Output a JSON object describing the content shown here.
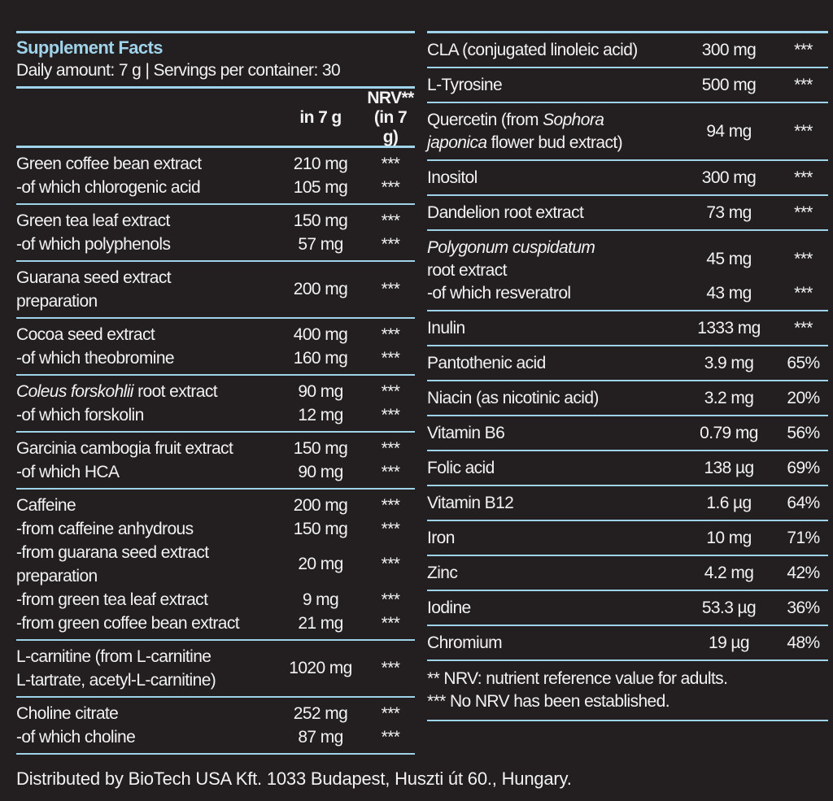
{
  "header": {
    "title": "Supplement Facts",
    "subtitle": "Daily amount: 7 g | Servings per container: 30"
  },
  "left": {
    "columns": {
      "amount": "in 7 g",
      "nrv": [
        "NRV**",
        "(in 7 g)"
      ]
    },
    "groups": [
      {
        "rows": [
          {
            "name": [
              "Green coffee bean extract"
            ],
            "amount": "210 mg",
            "nrv": "***"
          },
          {
            "name": [
              "-of which chlorogenic acid"
            ],
            "amount": "105 mg",
            "nrv": "***"
          }
        ]
      },
      {
        "rows": [
          {
            "name": [
              "Green tea leaf extract"
            ],
            "amount": "150 mg",
            "nrv": "***"
          },
          {
            "name": [
              "-of which polyphenols"
            ],
            "amount": "57 mg",
            "nrv": "***"
          }
        ]
      },
      {
        "rows": [
          {
            "name": [
              "Guarana seed extract",
              "preparation"
            ],
            "amount": "200 mg",
            "nrv": "***"
          }
        ]
      },
      {
        "rows": [
          {
            "name": [
              "Cocoa seed extract"
            ],
            "amount": "400 mg",
            "nrv": "***"
          },
          {
            "name": [
              "-of which theobromine"
            ],
            "amount": "160 mg",
            "nrv": "***"
          }
        ]
      },
      {
        "rows": [
          {
            "name": [
              [
                {
                  "i": "Coleus forskohlii"
                },
                " root extract"
              ]
            ],
            "amount": "90 mg",
            "nrv": "***"
          },
          {
            "name": [
              "-of which forskolin"
            ],
            "amount": "12 mg",
            "nrv": "***"
          }
        ]
      },
      {
        "rows": [
          {
            "name": [
              "Garcinia cambogia fruit extract"
            ],
            "amount": "150 mg",
            "nrv": "***"
          },
          {
            "name": [
              "-of which HCA"
            ],
            "amount": "90 mg",
            "nrv": "***"
          }
        ]
      },
      {
        "rows": [
          {
            "name": [
              "Caffeine"
            ],
            "amount": "200 mg",
            "nrv": "***"
          },
          {
            "name": [
              "-from caffeine anhydrous"
            ],
            "amount": "150 mg",
            "nrv": "***"
          },
          {
            "name": [
              "-from guarana seed extract",
              "preparation"
            ],
            "amount": "20 mg",
            "nrv": "***"
          },
          {
            "name": [
              "-from green tea leaf extract"
            ],
            "amount": "9 mg",
            "nrv": "***"
          },
          {
            "name": [
              "-from green coffee bean extract"
            ],
            "amount": "21 mg",
            "nrv": "***"
          }
        ]
      },
      {
        "rows": [
          {
            "name": [
              "L-carnitine (from L-carnitine",
              "L-tartrate, acetyl-L-carnitine)"
            ],
            "amount": "1020 mg",
            "nrv": "***"
          }
        ]
      },
      {
        "rows": [
          {
            "name": [
              "Choline citrate"
            ],
            "amount": "252 mg",
            "nrv": "***"
          },
          {
            "name": [
              "-of which choline"
            ],
            "amount": "87 mg",
            "nrv": "***"
          }
        ]
      }
    ]
  },
  "right": {
    "groups": [
      {
        "rows": [
          {
            "name": [
              "CLA (conjugated linoleic acid)"
            ],
            "amount": "300 mg",
            "nrv": "***"
          }
        ]
      },
      {
        "rows": [
          {
            "name": [
              "L-Tyrosine"
            ],
            "amount": "500 mg",
            "nrv": "***"
          }
        ]
      },
      {
        "rows": [
          {
            "name": [
              [
                "Quercetin (from ",
                {
                  "i": "Sophora"
                }
              ],
              [
                {
                  "i": "japonica"
                },
                " flower bud extract)"
              ]
            ],
            "amount": "94 mg",
            "nrv": "***"
          }
        ]
      },
      {
        "rows": [
          {
            "name": [
              "Inositol"
            ],
            "amount": "300 mg",
            "nrv": "***"
          }
        ]
      },
      {
        "rows": [
          {
            "name": [
              "Dandelion root extract"
            ],
            "amount": "73 mg",
            "nrv": "***"
          }
        ]
      },
      {
        "rows": [
          {
            "name": [
              [
                {
                  "i": "Polygonum cuspidatum"
                }
              ],
              "root extract"
            ],
            "amount": "45 mg",
            "nrv": "***"
          },
          {
            "name": [
              "-of which resveratrol"
            ],
            "amount": "43 mg",
            "nrv": "***"
          }
        ]
      },
      {
        "rows": [
          {
            "name": [
              "Inulin"
            ],
            "amount": "1333 mg",
            "nrv": "***"
          }
        ]
      },
      {
        "rows": [
          {
            "name": [
              "Pantothenic acid"
            ],
            "amount": "3.9 mg",
            "nrv": "65%"
          }
        ]
      },
      {
        "rows": [
          {
            "name": [
              "Niacin (as nicotinic acid)"
            ],
            "amount": "3.2 mg",
            "nrv": "20%"
          }
        ]
      },
      {
        "rows": [
          {
            "name": [
              "Vitamin B6"
            ],
            "amount": "0.79 mg",
            "nrv": "56%"
          }
        ]
      },
      {
        "rows": [
          {
            "name": [
              "Folic acid"
            ],
            "amount": "138 µg",
            "nrv": "69%"
          }
        ]
      },
      {
        "rows": [
          {
            "name": [
              "Vitamin B12"
            ],
            "amount": "1.6 µg",
            "nrv": "64%"
          }
        ]
      },
      {
        "rows": [
          {
            "name": [
              "Iron"
            ],
            "amount": "10 mg",
            "nrv": "71%"
          }
        ]
      },
      {
        "rows": [
          {
            "name": [
              "Zinc"
            ],
            "amount": "4.2 mg",
            "nrv": "42%"
          }
        ]
      },
      {
        "rows": [
          {
            "name": [
              "Iodine"
            ],
            "amount": "53.3 µg",
            "nrv": "36%"
          }
        ]
      },
      {
        "rows": [
          {
            "name": [
              "Chromium"
            ],
            "amount": "19 µg",
            "nrv": "48%"
          }
        ]
      }
    ],
    "footnotes": [
      "** NRV: nutrient reference value for adults.",
      "*** No NRV has been established."
    ]
  },
  "footer": "Distributed by BioTech USA Kft. 1033 Budapest, Huszti út 60., Hungary."
}
